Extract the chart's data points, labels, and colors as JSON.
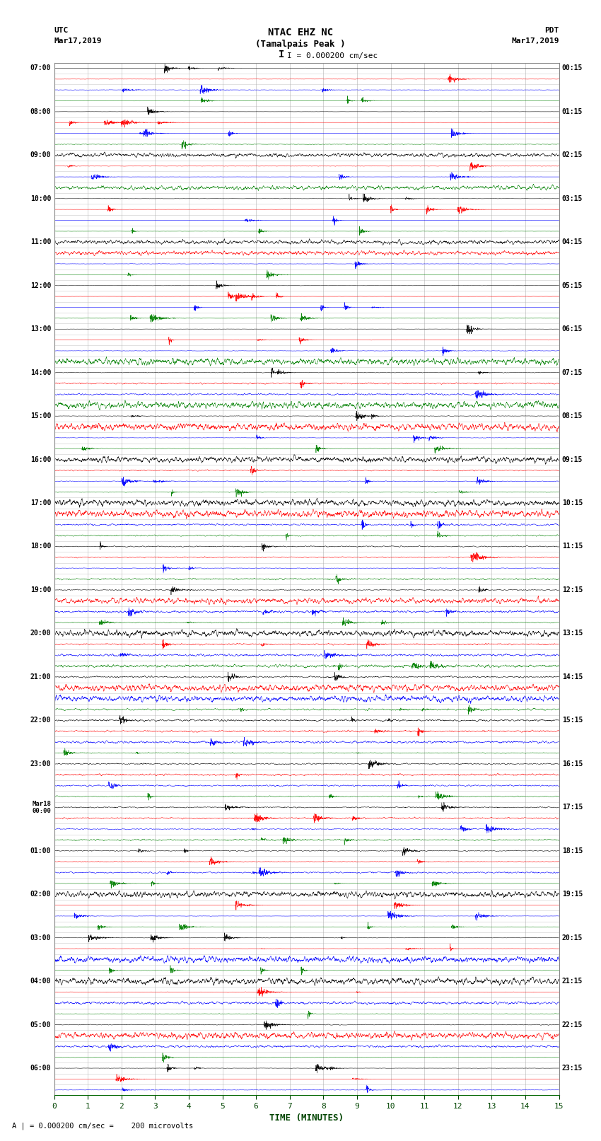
{
  "title_line1": "NTAC EHZ NC",
  "title_line2": "(Tamalpais Peak )",
  "scale_text": "I = 0.000200 cm/sec",
  "bottom_label": "A | = 0.000200 cm/sec =    200 microvolts",
  "xlabel": "TIME (MINUTES)",
  "utc_times": [
    "07:00",
    "",
    "",
    "",
    "08:00",
    "",
    "",
    "",
    "09:00",
    "",
    "",
    "",
    "10:00",
    "",
    "",
    "",
    "11:00",
    "",
    "",
    "",
    "12:00",
    "",
    "",
    "",
    "13:00",
    "",
    "",
    "",
    "14:00",
    "",
    "",
    "",
    "15:00",
    "",
    "",
    "",
    "16:00",
    "",
    "",
    "",
    "17:00",
    "",
    "",
    "",
    "18:00",
    "",
    "",
    "",
    "19:00",
    "",
    "",
    "",
    "20:00",
    "",
    "",
    "",
    "21:00",
    "",
    "",
    "",
    "22:00",
    "",
    "",
    "",
    "23:00",
    "",
    "",
    "",
    "Mar18\n00:00",
    "",
    "",
    "",
    "01:00",
    "",
    "",
    "",
    "02:00",
    "",
    "",
    "",
    "03:00",
    "",
    "",
    "",
    "04:00",
    "",
    "",
    "",
    "05:00",
    "",
    "",
    "",
    "06:00",
    "",
    ""
  ],
  "pdt_times": [
    "00:15",
    "",
    "",
    "",
    "01:15",
    "",
    "",
    "",
    "02:15",
    "",
    "",
    "",
    "03:15",
    "",
    "",
    "",
    "04:15",
    "",
    "",
    "",
    "05:15",
    "",
    "",
    "",
    "06:15",
    "",
    "",
    "",
    "07:15",
    "",
    "",
    "",
    "08:15",
    "",
    "",
    "",
    "09:15",
    "",
    "",
    "",
    "10:15",
    "",
    "",
    "",
    "11:15",
    "",
    "",
    "",
    "12:15",
    "",
    "",
    "",
    "13:15",
    "",
    "",
    "",
    "14:15",
    "",
    "",
    "",
    "15:15",
    "",
    "",
    "",
    "16:15",
    "",
    "",
    "",
    "17:15",
    "",
    "",
    "",
    "18:15",
    "",
    "",
    "",
    "19:15",
    "",
    "",
    "",
    "20:15",
    "",
    "",
    "",
    "21:15",
    "",
    "",
    "",
    "22:15",
    "",
    "",
    "",
    "23:15",
    "",
    ""
  ],
  "num_traces": 95,
  "trace_colors_cycle": [
    "black",
    "red",
    "blue",
    "green"
  ],
  "bg_color": "white",
  "grid_color": "#aaaaaa",
  "x_ticks": [
    0,
    1,
    2,
    3,
    4,
    5,
    6,
    7,
    8,
    9,
    10,
    11,
    12,
    13,
    14,
    15
  ],
  "x_min": 0,
  "x_max": 15,
  "noise_base": 0.03,
  "seed": 42
}
